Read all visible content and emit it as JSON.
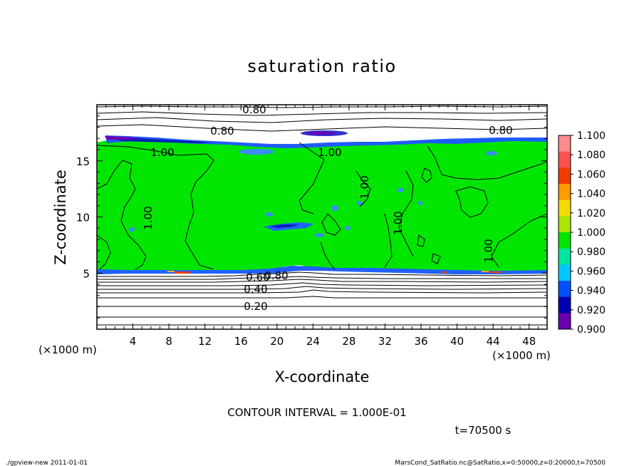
{
  "chart_data": {
    "type": "heatmap",
    "title": "saturation ratio",
    "xlabel": "X-coordinate",
    "ylabel": "Z-coordinate",
    "x_unit": "(×1000 m)",
    "y_unit": "(×1000 m)",
    "xlim": [
      0,
      50
    ],
    "ylim": [
      0,
      20
    ],
    "x_ticks": [
      4,
      8,
      12,
      16,
      20,
      24,
      28,
      32,
      36,
      40,
      44,
      48
    ],
    "y_ticks": [
      5,
      10,
      15
    ],
    "colorbar": {
      "labels": [
        "1.100",
        "1.080",
        "1.060",
        "1.040",
        "1.020",
        "1.000",
        "0.980",
        "0.960",
        "0.940",
        "0.920",
        "0.900"
      ],
      "colors": [
        "#ff8c8c",
        "#ff5050",
        "#f03c00",
        "#ff9a00",
        "#f5dc00",
        "#a8e600",
        "#00e600",
        "#00e6a0",
        "#00c8ff",
        "#0050ff",
        "#0000b0",
        "#6a00b0"
      ]
    },
    "fields": {
      "supersaturated_green_zone": {
        "z_bottom": 5.0,
        "z_top": 16.8,
        "value": 1.0
      },
      "dry_layer_below": {
        "z_top": 5.0,
        "value_range": [
          0.2,
          0.8
        ]
      },
      "dry_layer_above": {
        "z_bottom": 16.8,
        "value": 0.8
      }
    },
    "contour_labels": [
      "0.80",
      "0.80",
      "0.80",
      "1.00",
      "1.00",
      "1.00",
      "1.00",
      "1.00",
      "1.00",
      "0.60",
      "0.80",
      "0.40",
      "0.20"
    ],
    "contour_interval_text": "CONTOUR INTERVAL = 1.000E-01",
    "time_text": "t=70500 s",
    "grid": false,
    "legend": "right"
  },
  "footer": {
    "left": "./gpview-new  2011-01-01",
    "right": "MarsCond_SatRatio.nc@SatRatio,x=0:50000,z=0:20000,t=70500"
  }
}
